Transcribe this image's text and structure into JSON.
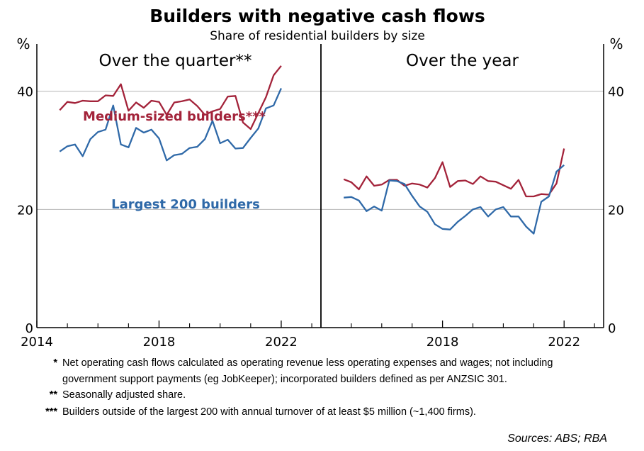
{
  "title": "Builders with negative cash flows",
  "subtitle": "Share of residential builders by size",
  "unit_left": "%",
  "unit_right": "%",
  "colors": {
    "medium": "#a3233a",
    "largest": "#2f69a8",
    "grid": "#b5b5b5",
    "axis": "#000000"
  },
  "footnotes": [
    {
      "marker": "*",
      "lines": [
        "Net operating cash flows calculated as operating revenue less operating expenses and wages; not including",
        "government support payments (eg JobKeeper);  incorporated builders defined as per ANZSIC 301."
      ]
    },
    {
      "marker": "**",
      "lines": [
        "Seasonally adjusted share."
      ]
    },
    {
      "marker": "***",
      "lines": [
        "Builders outside of the largest 200 with annual turnover of at least $5 million (~1,400 firms)."
      ]
    }
  ],
  "sources": "Sources: ABS; RBA",
  "chart_data": [
    {
      "type": "line",
      "title": "Over the quarter**",
      "ylim": [
        0,
        48
      ],
      "yticks": [
        0,
        20,
        40
      ],
      "xlim": [
        2014,
        2023.3
      ],
      "xticks": [
        {
          "value": 2014,
          "label": "2014"
        },
        {
          "value": 2018,
          "label": "2018"
        },
        {
          "value": 2022,
          "label": "2022"
        }
      ],
      "grid": true,
      "series": [
        {
          "name": "Medium-sized builders***",
          "color_key": "medium",
          "x": [
            2014.75,
            2015.0,
            2015.25,
            2015.5,
            2015.75,
            2016.0,
            2016.25,
            2016.5,
            2016.75,
            2017.0,
            2017.25,
            2017.5,
            2017.75,
            2018.0,
            2018.25,
            2018.5,
            2018.75,
            2019.0,
            2019.25,
            2019.5,
            2019.75,
            2020.0,
            2020.25,
            2020.5,
            2020.75,
            2021.0,
            2021.25,
            2021.5,
            2021.75,
            2022.0
          ],
          "y": [
            36.8,
            38.2,
            38.0,
            38.4,
            38.3,
            38.3,
            39.3,
            39.2,
            41.2,
            36.7,
            38.1,
            37.2,
            38.4,
            38.2,
            36.0,
            38.1,
            38.3,
            38.6,
            37.5,
            36.0,
            36.6,
            37.0,
            39.1,
            39.2,
            34.7,
            33.6,
            36.3,
            39.0,
            42.7,
            44.3
          ]
        },
        {
          "name": "Largest 200 builders",
          "color_key": "largest",
          "x": [
            2014.75,
            2015.0,
            2015.25,
            2015.5,
            2015.75,
            2016.0,
            2016.25,
            2016.5,
            2016.75,
            2017.0,
            2017.25,
            2017.5,
            2017.75,
            2018.0,
            2018.25,
            2018.5,
            2018.75,
            2019.0,
            2019.25,
            2019.5,
            2019.75,
            2020.0,
            2020.25,
            2020.5,
            2020.75,
            2021.0,
            2021.25,
            2021.5,
            2021.75,
            2022.0
          ],
          "y": [
            29.8,
            30.7,
            31.0,
            29.0,
            31.9,
            33.1,
            33.5,
            37.6,
            31.0,
            30.5,
            33.8,
            33.0,
            33.5,
            32.0,
            28.3,
            29.2,
            29.4,
            30.4,
            30.6,
            31.9,
            35.0,
            31.2,
            31.8,
            30.3,
            30.4,
            32.1,
            33.7,
            37.1,
            37.6,
            40.5
          ]
        }
      ]
    },
    {
      "type": "line",
      "title": "Over the year",
      "ylim": [
        0,
        48
      ],
      "yticks": [
        0,
        20,
        40
      ],
      "xlim": [
        2014,
        2023.3
      ],
      "xticks": [
        {
          "value": 2018,
          "label": "2018"
        },
        {
          "value": 2022,
          "label": "2022"
        }
      ],
      "grid": true,
      "series": [
        {
          "name": "Medium-sized builders***",
          "color_key": "medium",
          "x": [
            2014.75,
            2015.0,
            2015.25,
            2015.5,
            2015.75,
            2016.0,
            2016.25,
            2016.5,
            2016.75,
            2017.0,
            2017.25,
            2017.5,
            2017.75,
            2018.0,
            2018.25,
            2018.5,
            2018.75,
            2019.0,
            2019.25,
            2019.5,
            2019.75,
            2020.0,
            2020.25,
            2020.5,
            2020.75,
            2021.0,
            2021.25,
            2021.5,
            2021.75,
            2022.0
          ],
          "y": [
            25.1,
            24.6,
            23.4,
            25.6,
            24.0,
            24.2,
            25.0,
            25.0,
            24.0,
            24.4,
            24.2,
            23.7,
            25.3,
            28.0,
            23.8,
            24.8,
            24.9,
            24.3,
            25.6,
            24.8,
            24.7,
            24.1,
            23.5,
            25.0,
            22.2,
            22.2,
            22.6,
            22.5,
            24.4,
            30.3
          ]
        },
        {
          "name": "Largest 200 builders",
          "color_key": "largest",
          "x": [
            2014.75,
            2015.0,
            2015.25,
            2015.5,
            2015.75,
            2016.0,
            2016.25,
            2016.5,
            2016.75,
            2017.0,
            2017.25,
            2017.5,
            2017.75,
            2018.0,
            2018.25,
            2018.5,
            2018.75,
            2019.0,
            2019.25,
            2019.5,
            2019.75,
            2020.0,
            2020.25,
            2020.5,
            2020.75,
            2021.0,
            2021.25,
            2021.5,
            2021.75,
            2022.0
          ],
          "y": [
            22.0,
            22.1,
            21.5,
            19.7,
            20.5,
            19.8,
            24.9,
            24.8,
            24.3,
            22.3,
            20.5,
            19.6,
            17.5,
            16.7,
            16.6,
            17.9,
            18.9,
            20.0,
            20.4,
            18.8,
            20.0,
            20.4,
            18.8,
            18.8,
            17.1,
            15.9,
            21.3,
            22.2,
            26.4,
            27.5
          ]
        }
      ]
    }
  ]
}
